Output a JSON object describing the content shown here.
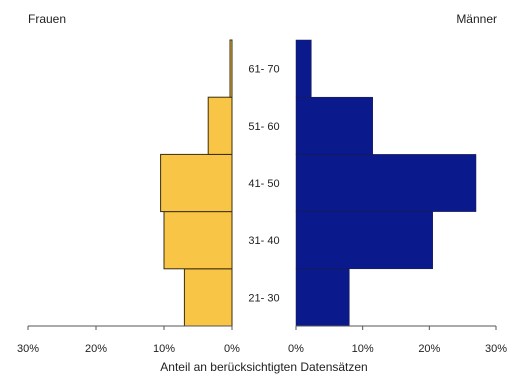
{
  "chart_data": {
    "type": "bar",
    "subtype": "population-pyramid",
    "categories": [
      "21- 30",
      "31- 40",
      "41- 50",
      "51- 60",
      "61- 70"
    ],
    "series": [
      {
        "name": "Frauen",
        "side": "left",
        "color": "#F8C546",
        "values": [
          7,
          10,
          10.5,
          3.5,
          0.3
        ]
      },
      {
        "name": "Männer",
        "side": "right",
        "color": "#0A1A8C",
        "values": [
          8,
          20.5,
          27,
          11.5,
          2.3
        ]
      }
    ],
    "left_ticks": [
      "30%",
      "20%",
      "10%",
      "0%"
    ],
    "right_ticks": [
      "0%",
      "10%",
      "20%",
      "30%"
    ],
    "xlim": [
      0,
      30
    ],
    "xlabel": "Anteil an berücksichtigten Datensätzen",
    "title": "",
    "grid": false,
    "legend": "none"
  }
}
